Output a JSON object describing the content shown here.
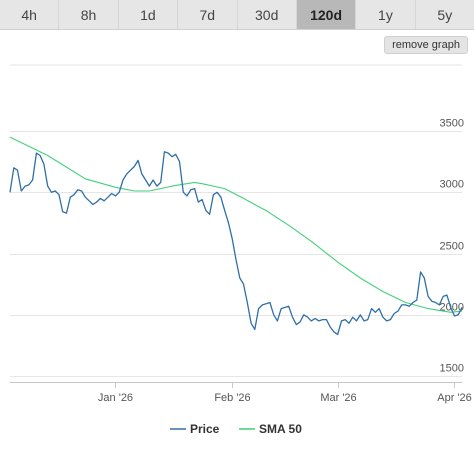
{
  "range_tabs": [
    {
      "label": "4h",
      "active": false
    },
    {
      "label": "8h",
      "active": false
    },
    {
      "label": "1d",
      "active": false
    },
    {
      "label": "7d",
      "active": false
    },
    {
      "label": "30d",
      "active": false
    },
    {
      "label": "120d",
      "active": true
    },
    {
      "label": "1y",
      "active": false
    },
    {
      "label": "5y",
      "active": false
    }
  ],
  "remove_graph_label": "remove graph",
  "chart_data": {
    "type": "line",
    "x_ticks": [
      "Jan '26",
      "Feb '26",
      "Mar '26",
      "Apr '26"
    ],
    "y_ticks": [
      1500,
      2000,
      2500,
      3000,
      3500
    ],
    "ylim": [
      1500,
      3500
    ],
    "grid": "horizontal",
    "legend_position": "bottom-center",
    "x_start": "2025-12-04",
    "x_end": "2026-04-03",
    "series": [
      {
        "name": "Price",
        "color": "#2f6fa7",
        "points": [
          [
            "2025-12-04",
            3000
          ],
          [
            "2025-12-05",
            3200
          ],
          [
            "2025-12-06",
            3180
          ],
          [
            "2025-12-07",
            3010
          ],
          [
            "2025-12-08",
            3050
          ],
          [
            "2025-12-09",
            3060
          ],
          [
            "2025-12-10",
            3100
          ],
          [
            "2025-12-11",
            3320
          ],
          [
            "2025-12-12",
            3300
          ],
          [
            "2025-12-13",
            3230
          ],
          [
            "2025-12-14",
            3050
          ],
          [
            "2025-12-15",
            3000
          ],
          [
            "2025-12-16",
            3010
          ],
          [
            "2025-12-17",
            2980
          ],
          [
            "2025-12-18",
            2840
          ],
          [
            "2025-12-19",
            2830
          ],
          [
            "2025-12-20",
            2960
          ],
          [
            "2025-12-21",
            2980
          ],
          [
            "2025-12-22",
            3020
          ],
          [
            "2025-12-23",
            3010
          ],
          [
            "2025-12-24",
            2960
          ],
          [
            "2025-12-25",
            2930
          ],
          [
            "2025-12-26",
            2900
          ],
          [
            "2025-12-27",
            2920
          ],
          [
            "2025-12-28",
            2950
          ],
          [
            "2025-12-29",
            2930
          ],
          [
            "2025-12-30",
            2960
          ],
          [
            "2025-12-31",
            2990
          ],
          [
            "2026-01-01",
            2970
          ],
          [
            "2026-01-02",
            3000
          ],
          [
            "2026-01-03",
            3100
          ],
          [
            "2026-01-04",
            3150
          ],
          [
            "2026-01-05",
            3180
          ],
          [
            "2026-01-06",
            3210
          ],
          [
            "2026-01-07",
            3260
          ],
          [
            "2026-01-08",
            3150
          ],
          [
            "2026-01-09",
            3100
          ],
          [
            "2026-01-10",
            3050
          ],
          [
            "2026-01-11",
            3100
          ],
          [
            "2026-01-12",
            3050
          ],
          [
            "2026-01-13",
            3080
          ],
          [
            "2026-01-14",
            3330
          ],
          [
            "2026-01-15",
            3320
          ],
          [
            "2026-01-16",
            3290
          ],
          [
            "2026-01-17",
            3310
          ],
          [
            "2026-01-18",
            3250
          ],
          [
            "2026-01-19",
            3000
          ],
          [
            "2026-01-20",
            2970
          ],
          [
            "2026-01-21",
            3020
          ],
          [
            "2026-01-22",
            3030
          ],
          [
            "2026-01-23",
            2920
          ],
          [
            "2026-01-24",
            2940
          ],
          [
            "2026-01-25",
            2850
          ],
          [
            "2026-01-26",
            2820
          ],
          [
            "2026-01-27",
            2980
          ],
          [
            "2026-01-28",
            3000
          ],
          [
            "2026-01-29",
            2960
          ],
          [
            "2026-01-30",
            2850
          ],
          [
            "2026-01-31",
            2750
          ],
          [
            "2026-02-01",
            2620
          ],
          [
            "2026-02-02",
            2450
          ],
          [
            "2026-02-03",
            2300
          ],
          [
            "2026-02-04",
            2250
          ],
          [
            "2026-02-05",
            2100
          ],
          [
            "2026-02-06",
            1930
          ],
          [
            "2026-02-07",
            1880
          ],
          [
            "2026-02-08",
            2050
          ],
          [
            "2026-02-09",
            2080
          ],
          [
            "2026-02-10",
            2090
          ],
          [
            "2026-02-11",
            2100
          ],
          [
            "2026-02-12",
            2000
          ],
          [
            "2026-02-13",
            1950
          ],
          [
            "2026-02-14",
            2050
          ],
          [
            "2026-02-15",
            2060
          ],
          [
            "2026-02-16",
            2070
          ],
          [
            "2026-02-17",
            1980
          ],
          [
            "2026-02-18",
            1920
          ],
          [
            "2026-02-19",
            1940
          ],
          [
            "2026-02-20",
            2000
          ],
          [
            "2026-02-21",
            1980
          ],
          [
            "2026-02-22",
            1950
          ],
          [
            "2026-02-23",
            1970
          ],
          [
            "2026-02-24",
            1950
          ],
          [
            "2026-02-25",
            1960
          ],
          [
            "2026-02-26",
            1960
          ],
          [
            "2026-02-27",
            1900
          ],
          [
            "2026-02-28",
            1860
          ],
          [
            "2026-03-01",
            1840
          ],
          [
            "2026-03-02",
            1950
          ],
          [
            "2026-03-03",
            1960
          ],
          [
            "2026-03-04",
            1930
          ],
          [
            "2026-03-05",
            1980
          ],
          [
            "2026-03-06",
            1950
          ],
          [
            "2026-03-07",
            2000
          ],
          [
            "2026-03-08",
            1950
          ],
          [
            "2026-03-09",
            1960
          ],
          [
            "2026-03-10",
            2050
          ],
          [
            "2026-03-11",
            2020
          ],
          [
            "2026-03-12",
            2050
          ],
          [
            "2026-03-13",
            1980
          ],
          [
            "2026-03-14",
            1950
          ],
          [
            "2026-03-15",
            1960
          ],
          [
            "2026-03-16",
            2010
          ],
          [
            "2026-03-17",
            2030
          ],
          [
            "2026-03-18",
            2080
          ],
          [
            "2026-03-19",
            2080
          ],
          [
            "2026-03-20",
            2070
          ],
          [
            "2026-03-21",
            2100
          ],
          [
            "2026-03-22",
            2120
          ],
          [
            "2026-03-23",
            2350
          ],
          [
            "2026-03-24",
            2300
          ],
          [
            "2026-03-25",
            2150
          ],
          [
            "2026-03-26",
            2110
          ],
          [
            "2026-03-27",
            2100
          ],
          [
            "2026-03-28",
            2080
          ],
          [
            "2026-03-29",
            2150
          ],
          [
            "2026-03-30",
            2160
          ],
          [
            "2026-03-31",
            2060
          ],
          [
            "2026-04-01",
            1990
          ],
          [
            "2026-04-02",
            2000
          ],
          [
            "2026-04-03",
            2060
          ]
        ]
      },
      {
        "name": "SMA 50",
        "color": "#41d17a",
        "points": [
          [
            "2025-12-04",
            3450
          ],
          [
            "2025-12-14",
            3300
          ],
          [
            "2025-12-24",
            3110
          ],
          [
            "2026-01-01",
            3040
          ],
          [
            "2026-01-06",
            3010
          ],
          [
            "2026-01-10",
            3010
          ],
          [
            "2026-01-16",
            3050
          ],
          [
            "2026-01-22",
            3080
          ],
          [
            "2026-01-24",
            3070
          ],
          [
            "2026-01-30",
            3030
          ],
          [
            "2026-02-04",
            2950
          ],
          [
            "2026-02-10",
            2850
          ],
          [
            "2026-02-16",
            2730
          ],
          [
            "2026-02-22",
            2600
          ],
          [
            "2026-03-01",
            2430
          ],
          [
            "2026-03-07",
            2300
          ],
          [
            "2026-03-13",
            2190
          ],
          [
            "2026-03-19",
            2100
          ],
          [
            "2026-03-25",
            2050
          ],
          [
            "2026-03-31",
            2020
          ],
          [
            "2026-04-03",
            2030
          ]
        ]
      }
    ]
  }
}
